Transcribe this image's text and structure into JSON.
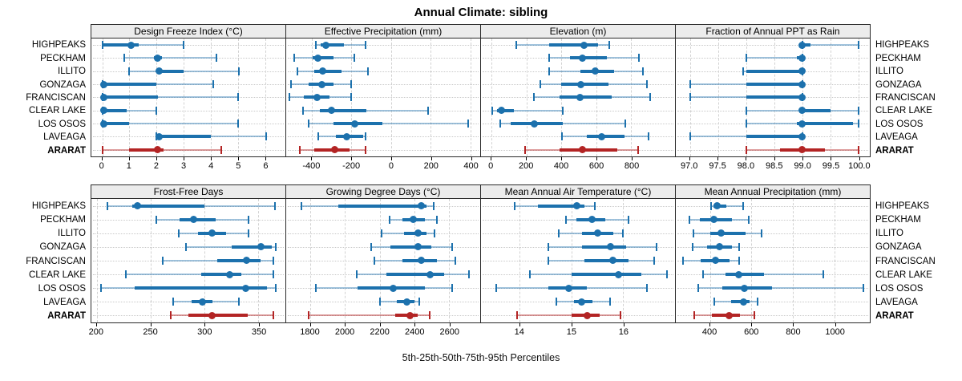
{
  "title": "Annual Climate: sibling",
  "footer": "5th-25th-50th-75th-95th Percentiles",
  "colors": {
    "series_blue": "#1c71ad",
    "series_blue_light": "rgba(28,113,173,0.42)",
    "highlight_red": "#b32424",
    "highlight_red_light": "rgba(179,36,36,0.45)",
    "grid": "#d2d2d2",
    "header_bg": "#ececec",
    "border": "#2a2a2a"
  },
  "sites": [
    {
      "name": "HIGHPEAKS",
      "emphasis": false
    },
    {
      "name": "PECKHAM",
      "emphasis": false
    },
    {
      "name": "ILLITO",
      "emphasis": false
    },
    {
      "name": "GONZAGA",
      "emphasis": false
    },
    {
      "name": "FRANCISCAN",
      "emphasis": false
    },
    {
      "name": "CLEAR LAKE",
      "emphasis": false
    },
    {
      "name": "LOS OSOS",
      "emphasis": false
    },
    {
      "name": "LAVEAGA",
      "emphasis": false
    },
    {
      "name": "ARARAT",
      "emphasis": true
    }
  ],
  "chart_data": {
    "type": "scatter",
    "variant": "trellis percentile interval dot plot (2 rows x 4 columns)",
    "percentile_labels": [
      "5th",
      "25th",
      "50th",
      "75th",
      "95th"
    ],
    "categories": [
      "HIGHPEAKS",
      "PECKHAM",
      "ILLITO",
      "GONZAGA",
      "FRANCISCAN",
      "CLEAR LAKE",
      "LOS OSOS",
      "LAVEAGA",
      "ARARAT"
    ],
    "highlight_category": "ARARAT",
    "grid": true,
    "panels": [
      {
        "title": "Design Freeze Index (°C)",
        "xlim": [
          -0.4,
          6.75
        ],
        "ticks": [
          {
            "v": 0,
            "label": "0"
          },
          {
            "v": 1,
            "label": "1"
          },
          {
            "v": 2,
            "label": "2"
          },
          {
            "v": 3,
            "label": "3"
          },
          {
            "v": 4,
            "label": "4"
          },
          {
            "v": 5,
            "label": "5"
          },
          {
            "v": 6,
            "label": "6"
          }
        ],
        "values": [
          [
            0,
            0.05,
            1.05,
            1.35,
            3.0
          ],
          [
            0.8,
            1.9,
            2.05,
            2.2,
            4.2
          ],
          [
            1.0,
            2.0,
            2.1,
            3.0,
            5.05
          ],
          [
            0,
            0.02,
            0.05,
            2.0,
            4.1
          ],
          [
            0,
            0.02,
            0.05,
            2.05,
            5.0
          ],
          [
            0,
            0.02,
            0.05,
            0.9,
            2.0
          ],
          [
            0,
            0.02,
            0.05,
            1.0,
            5.0
          ],
          [
            2.0,
            2.02,
            2.1,
            4.0,
            6.05
          ],
          [
            0,
            1.0,
            2.05,
            2.25,
            4.4
          ]
        ]
      },
      {
        "title": "Effective Precipitation (mm)",
        "xlim": [
          -530,
          450
        ],
        "ticks": [
          {
            "v": -400,
            "label": "-400"
          },
          {
            "v": -200,
            "label": "-200"
          },
          {
            "v": 0,
            "label": "0"
          },
          {
            "v": 200,
            "label": "200"
          },
          {
            "v": 400,
            "label": "400"
          }
        ],
        "values": [
          [
            -380,
            -355,
            -330,
            -240,
            -130
          ],
          [
            -490,
            -395,
            -370,
            -290,
            -185
          ],
          [
            -475,
            -390,
            -345,
            -250,
            -115
          ],
          [
            -505,
            -415,
            -350,
            -290,
            -200
          ],
          [
            -515,
            -440,
            -375,
            -310,
            -200
          ],
          [
            -445,
            -360,
            -300,
            -125,
            185
          ],
          [
            -415,
            -290,
            -185,
            -45,
            390
          ],
          [
            -370,
            -280,
            -225,
            -140,
            -130
          ],
          [
            -460,
            -390,
            -285,
            -210,
            -130
          ]
        ]
      },
      {
        "title": "Elevation (m)",
        "xlim": [
          -60,
          1050
        ],
        "ticks": [
          {
            "v": 0,
            "label": "0"
          },
          {
            "v": 200,
            "label": "200"
          },
          {
            "v": 400,
            "label": "400"
          },
          {
            "v": 600,
            "label": "600"
          },
          {
            "v": 800,
            "label": "800"
          }
        ],
        "values": [
          [
            140,
            330,
            530,
            610,
            675
          ],
          [
            330,
            450,
            520,
            660,
            845
          ],
          [
            330,
            510,
            595,
            700,
            865
          ],
          [
            280,
            400,
            510,
            670,
            890
          ],
          [
            245,
            390,
            505,
            690,
            910
          ],
          [
            5,
            30,
            55,
            130,
            410
          ],
          [
            50,
            110,
            245,
            410,
            765
          ],
          [
            405,
            545,
            630,
            760,
            900
          ],
          [
            190,
            390,
            520,
            720,
            840
          ]
        ]
      },
      {
        "title": "Fraction of Annual PPT as Rain",
        "xlim": [
          96.75,
          100.2
        ],
        "ticks": [
          {
            "v": 97.0,
            "label": "97.0"
          },
          {
            "v": 97.5,
            "label": "97.5"
          },
          {
            "v": 98.0,
            "label": "98.0"
          },
          {
            "v": 98.5,
            "label": "98.5"
          },
          {
            "v": 99.0,
            "label": "99.0"
          },
          {
            "v": 99.5,
            "label": "99.5"
          },
          {
            "v": 100.0,
            "label": "100.0"
          }
        ],
        "values": [
          [
            99.0,
            99.0,
            99.0,
            99.15,
            100.0
          ],
          [
            98.0,
            98.9,
            99.0,
            99.0,
            99.0
          ],
          [
            97.95,
            98.0,
            99.0,
            99.0,
            99.0
          ],
          [
            97.0,
            98.0,
            99.0,
            99.0,
            99.0
          ],
          [
            97.0,
            98.0,
            99.0,
            99.0,
            99.0
          ],
          [
            98.0,
            98.95,
            99.0,
            99.5,
            100.0
          ],
          [
            98.0,
            98.9,
            99.0,
            99.9,
            100.0
          ],
          [
            97.0,
            98.0,
            99.0,
            99.0,
            99.0
          ],
          [
            98.0,
            98.6,
            99.0,
            99.4,
            100.0
          ]
        ]
      },
      {
        "title": "Frost-Free Days",
        "xlim": [
          195,
          375
        ],
        "ticks": [
          {
            "v": 200,
            "label": "200"
          },
          {
            "v": 250,
            "label": "250"
          },
          {
            "v": 300,
            "label": "300"
          },
          {
            "v": 350,
            "label": "350"
          }
        ],
        "values": [
          [
            210,
            233,
            238,
            300,
            365
          ],
          [
            255,
            277,
            290,
            310,
            341
          ],
          [
            276,
            294,
            307,
            320,
            341
          ],
          [
            283,
            325,
            352,
            362,
            366
          ],
          [
            261,
            312,
            339,
            352,
            364
          ],
          [
            227,
            297,
            323,
            334,
            364
          ],
          [
            204,
            235,
            338,
            358,
            366
          ],
          [
            271,
            288,
            298,
            307,
            332
          ],
          [
            269,
            285,
            307,
            340,
            364
          ]
        ]
      },
      {
        "title": "Growing Degree Days (°C)",
        "xlim": [
          1660,
          2780
        ],
        "ticks": [
          {
            "v": 1800,
            "label": "1800"
          },
          {
            "v": 2000,
            "label": "2000"
          },
          {
            "v": 2200,
            "label": "2200"
          },
          {
            "v": 2400,
            "label": "2400"
          },
          {
            "v": 2600,
            "label": "2600"
          }
        ],
        "values": [
          [
            1750,
            1960,
            2440,
            2470,
            2510
          ],
          [
            2255,
            2330,
            2395,
            2460,
            2530
          ],
          [
            2210,
            2340,
            2420,
            2470,
            2515
          ],
          [
            2150,
            2260,
            2420,
            2500,
            2620
          ],
          [
            2170,
            2330,
            2440,
            2530,
            2635
          ],
          [
            2065,
            2240,
            2490,
            2570,
            2715
          ],
          [
            1830,
            2070,
            2280,
            2460,
            2620
          ],
          [
            2200,
            2300,
            2355,
            2400,
            2430
          ],
          [
            1790,
            2290,
            2375,
            2420,
            2490
          ]
        ]
      },
      {
        "title": "Mean Annual Air Temperature (°C)",
        "xlim": [
          13.25,
          17.0
        ],
        "ticks": [
          {
            "v": 14,
            "label": "14"
          },
          {
            "v": 15,
            "label": "15"
          },
          {
            "v": 16,
            "label": "16"
          }
        ],
        "values": [
          [
            13.9,
            14.35,
            15.1,
            15.25,
            15.45
          ],
          [
            14.9,
            15.1,
            15.4,
            15.65,
            16.1
          ],
          [
            14.75,
            15.2,
            15.5,
            15.8,
            16.0
          ],
          [
            14.55,
            15.2,
            15.75,
            16.05,
            16.65
          ],
          [
            14.55,
            15.25,
            15.8,
            16.1,
            16.6
          ],
          [
            14.2,
            15.0,
            15.9,
            16.35,
            16.85
          ],
          [
            13.55,
            14.55,
            14.95,
            15.3,
            16.45
          ],
          [
            14.7,
            15.05,
            15.2,
            15.4,
            15.75
          ],
          [
            13.95,
            15.0,
            15.3,
            15.55,
            15.95
          ]
        ]
      },
      {
        "title": "Mean Annual Precipitation (mm)",
        "xlim": [
          235,
          1170
        ],
        "ticks": [
          {
            "v": 400,
            "label": "400"
          },
          {
            "v": 600,
            "label": "600"
          },
          {
            "v": 800,
            "label": "800"
          },
          {
            "v": 1000,
            "label": "1000"
          }
        ],
        "values": [
          [
            405,
            415,
            435,
            480,
            560
          ],
          [
            300,
            350,
            420,
            505,
            585
          ],
          [
            320,
            400,
            455,
            570,
            650
          ],
          [
            315,
            385,
            445,
            505,
            540
          ],
          [
            270,
            355,
            425,
            495,
            540
          ],
          [
            365,
            475,
            540,
            660,
            945
          ],
          [
            345,
            460,
            565,
            700,
            1140
          ],
          [
            420,
            500,
            560,
            590,
            630
          ],
          [
            325,
            410,
            490,
            545,
            615
          ]
        ]
      }
    ]
  }
}
